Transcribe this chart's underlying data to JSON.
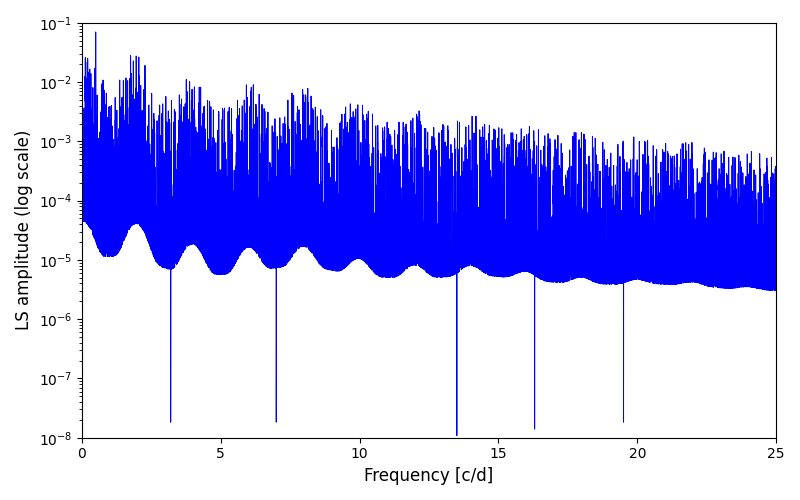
{
  "xlabel": "Frequency [c/d]",
  "ylabel": "LS amplitude (log scale)",
  "xlim": [
    0,
    25
  ],
  "ylim": [
    1e-08,
    0.1
  ],
  "line_color": "#0000ff",
  "line_width": 0.7,
  "figsize": [
    8.0,
    5.0
  ],
  "dpi": 100,
  "seed": 7777,
  "n_points": 8000,
  "fmax": 25.0,
  "peak_amplitude": 0.07,
  "peak_freq": 0.5
}
